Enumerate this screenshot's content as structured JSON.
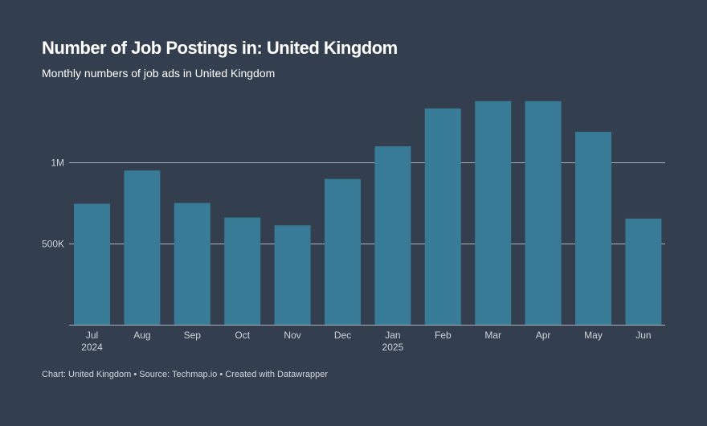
{
  "header": {
    "title": "Number of Job Postings in: United Kingdom",
    "subtitle": "Monthly numbers of job ads in United Kingdom"
  },
  "footer": {
    "text": "Chart: United Kingdom • Source: Techmap.io • Created with Datawrapper"
  },
  "colors": {
    "background": "#333e4f",
    "bar": "#377b97",
    "grid": "#aab2bd",
    "tick_text": "#cfd4da",
    "label_text": "#ffffff"
  },
  "chart_data": {
    "type": "bar",
    "title": "Number of Job Postings in: United Kingdom",
    "subtitle": "Monthly numbers of job ads in United Kingdom",
    "categories": [
      "Jul",
      "Aug",
      "Sep",
      "Oct",
      "Nov",
      "Dec",
      "Jan",
      "Feb",
      "Mar",
      "Apr",
      "May",
      "Jun"
    ],
    "category_years": [
      "2024",
      "",
      "",
      "",
      "",
      "",
      "2025",
      "",
      "",
      "",
      "",
      ""
    ],
    "values": [
      745000,
      950000,
      750000,
      660000,
      612000,
      898000,
      1099000,
      1332000,
      1377000,
      1377000,
      1188000,
      654000
    ],
    "ylim": [
      0,
      1350000
    ],
    "yticks": [
      {
        "value": 500000,
        "label": "500K"
      },
      {
        "value": 1000000,
        "label": "1M"
      }
    ],
    "grid": true,
    "legend": "none",
    "xlabel": "",
    "ylabel": ""
  }
}
